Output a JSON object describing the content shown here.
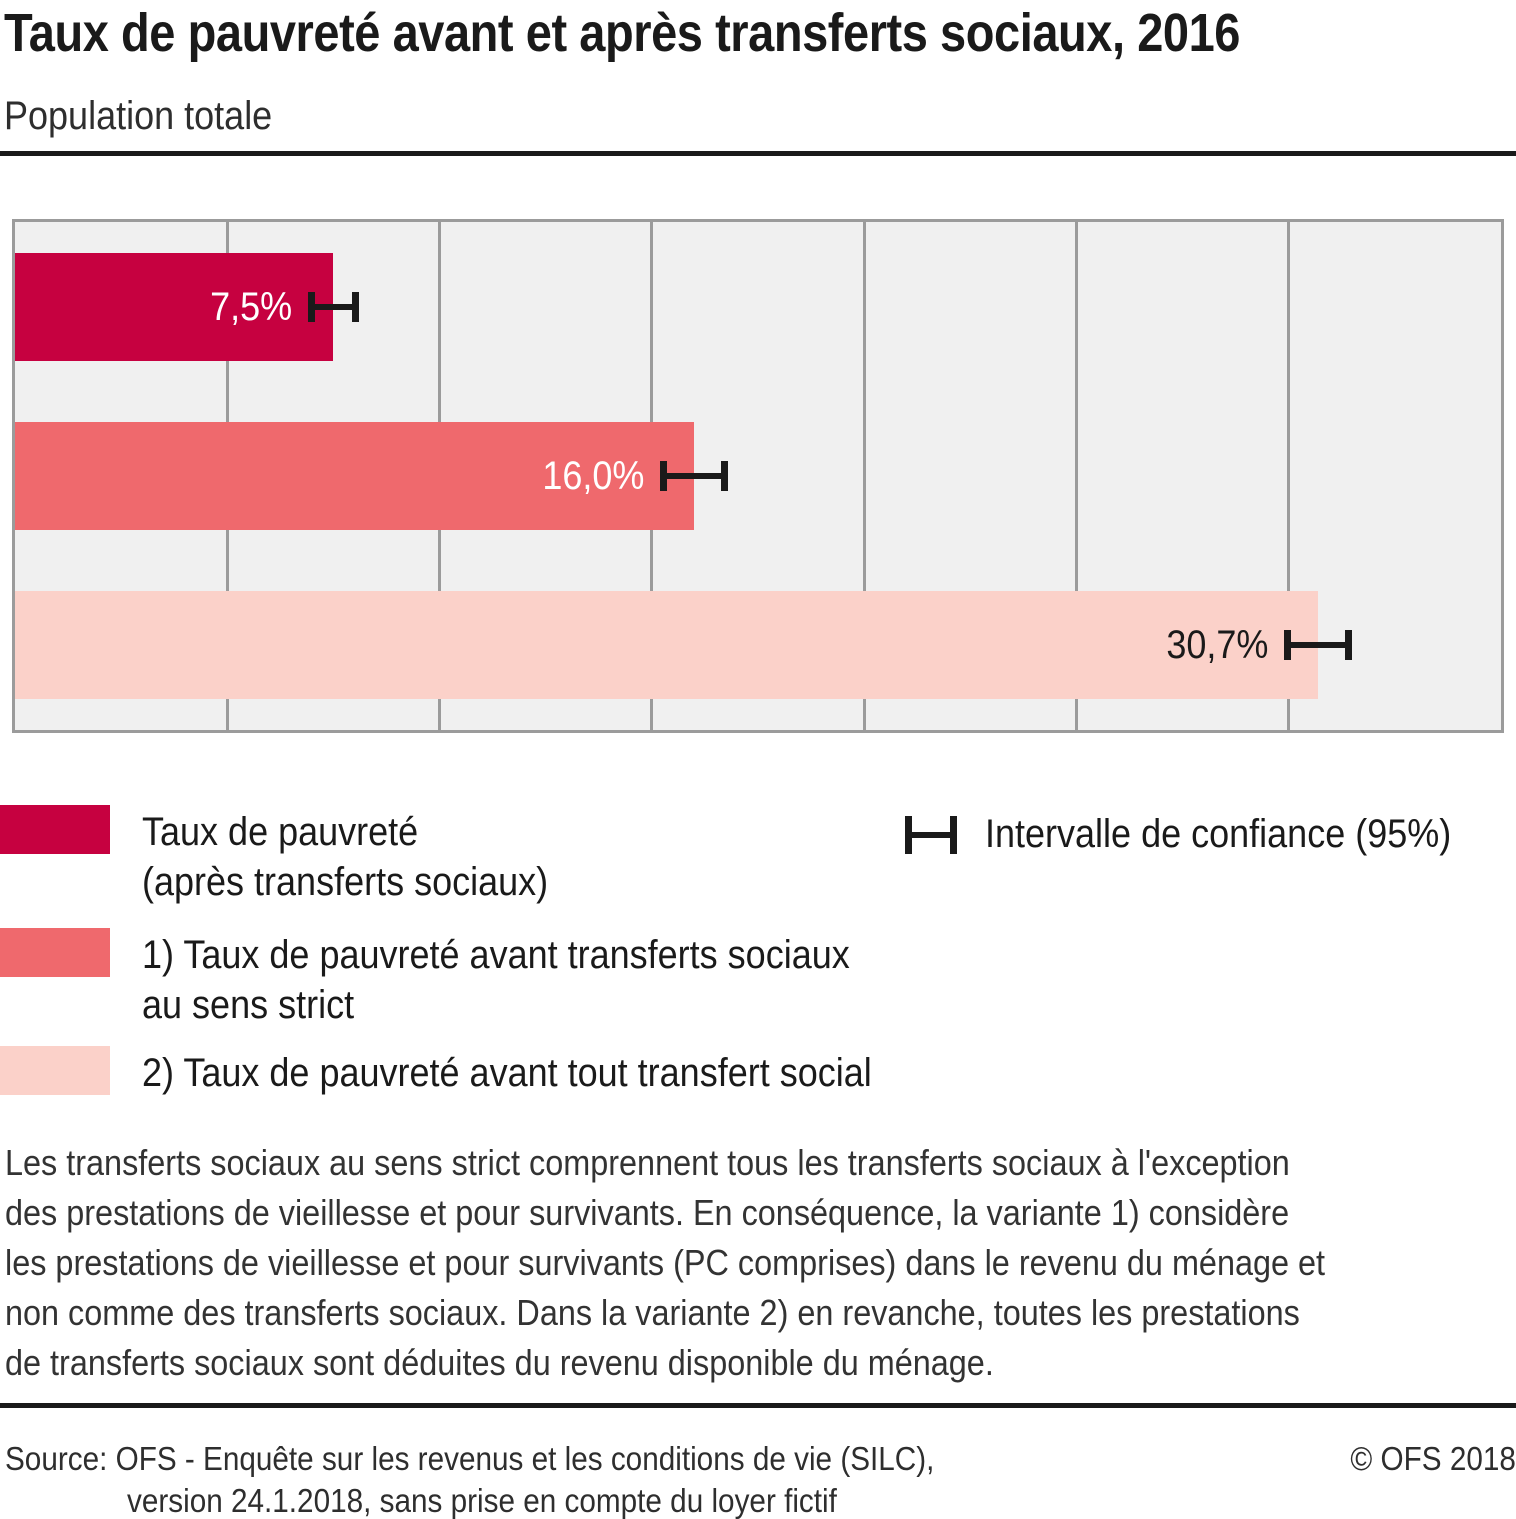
{
  "header": {
    "title": "Taux de pauvreté avant et après transferts sociaux, 2016",
    "subtitle": "Population totale"
  },
  "chart_data": {
    "type": "bar",
    "orientation": "horizontal",
    "title": "Taux de pauvreté avant et après transferts sociaux, 2016",
    "subtitle": "Population totale",
    "unit": "%",
    "categories": [
      "Taux de pauvreté (après transferts sociaux)",
      "1) Taux de pauvreté avant transferts sociaux au sens strict",
      "2) Taux de pauvreté avant tout transfert social"
    ],
    "values": [
      7.5,
      16.0,
      30.7
    ],
    "value_labels": [
      "7,5%",
      "16,0%",
      "30,7%"
    ],
    "confidence_interval_95_halfwidth": [
      0.6,
      0.8,
      0.8
    ],
    "xlim": [
      0,
      35
    ],
    "gridline_step": 5,
    "grid": "vertical",
    "legend_position": "below",
    "plot_background": "#f0f0f0",
    "gridline_color": "#9b9b9b",
    "errorbar_color": "#1a1a1a",
    "bar_colors": [
      "#c60140",
      "#ef696d",
      "#fbd1c9"
    ],
    "value_label_colors": [
      "#ffffff",
      "#ffffff",
      "#1a1a1a"
    ]
  },
  "legend": {
    "items": [
      {
        "color": "#c60140",
        "lines": [
          "Taux de pauvreté",
          "(après transferts sociaux)"
        ]
      },
      {
        "color": "#ef696d",
        "lines": [
          "1) Taux de pauvreté avant transferts sociaux",
          "au sens strict"
        ]
      },
      {
        "color": "#fbd1c9",
        "lines": [
          "2) Taux de pauvreté avant tout transfert social"
        ]
      }
    ],
    "confidence": {
      "label": "Intervalle de confiance (95%)"
    }
  },
  "footnote": {
    "lines": [
      "Les transferts sociaux au sens strict comprennent tous les transferts sociaux à l'exception",
      "des prestations de vieillesse et pour survivants. En conséquence, la variante 1) considère",
      "les prestations de vieillesse et pour survivants (PC comprises) dans le revenu du ménage et",
      "non comme des transferts sociaux. Dans la variante 2) en revanche, toutes les prestations",
      "de transferts sociaux sont déduites du revenu disponible du ménage."
    ]
  },
  "footer": {
    "source_line1": "Source: OFS - Enquête sur les revenus et les conditions de vie (SILC),",
    "source_line2": "version 24.1.2018, sans prise en compte du loyer fictif",
    "copyright": "© OFS 2018"
  }
}
